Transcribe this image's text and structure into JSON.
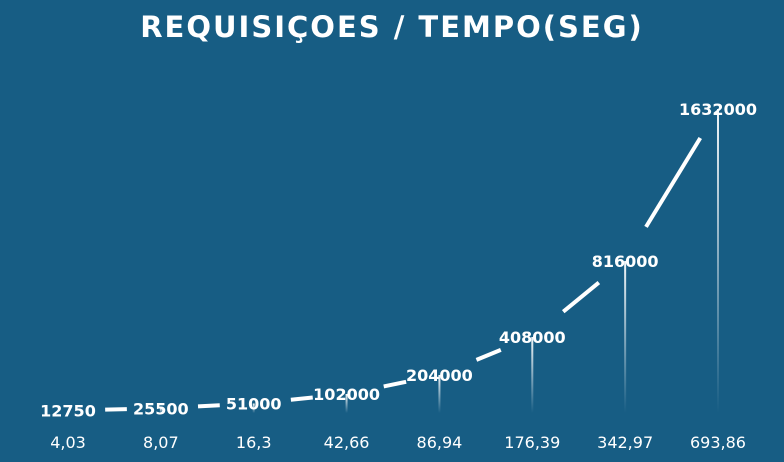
{
  "chart_data": {
    "type": "line",
    "title": "REQUISIÇOES / TEMPO(SEG)",
    "x": [
      "4,03",
      "8,07",
      "16,3",
      "42,66",
      "86,94",
      "176,39",
      "342,97",
      "693,86"
    ],
    "y": [
      12750,
      25500,
      51000,
      102000,
      204000,
      408000,
      816000,
      1632000
    ],
    "data_labels": [
      "12750",
      "25500",
      "51000",
      "102000",
      "204000",
      "408000",
      "816000",
      "1632000"
    ],
    "xlabel": "",
    "ylabel": "",
    "ylim": [
      0,
      1632000
    ],
    "grid": false,
    "legend": "none",
    "colors": {
      "background": "#175d84",
      "line": "#ffffff",
      "text": "#ffffff"
    }
  }
}
